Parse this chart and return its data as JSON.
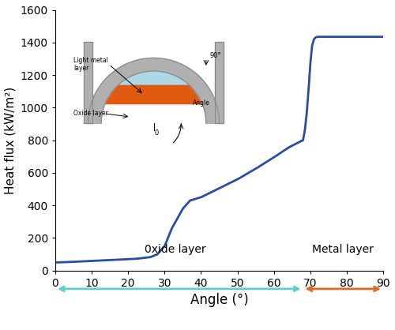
{
  "title": "",
  "xlabel": "Angle (°)",
  "ylabel": "Heat flux (kW/m²)",
  "xlim": [
    0,
    90
  ],
  "ylim": [
    0,
    1600
  ],
  "xticks": [
    0,
    10,
    20,
    30,
    40,
    50,
    60,
    70,
    80,
    90
  ],
  "yticks": [
    0,
    200,
    400,
    600,
    800,
    1000,
    1200,
    1400,
    1600
  ],
  "line_color": "#2b4ca0",
  "line_width": 2.0,
  "oxide_label": "0xide layer",
  "metal_label": "Metal layer",
  "oxide_arrow_color": "#5ecfcf",
  "metal_arrow_color": "#e06820",
  "oxide_boundary": 68,
  "key_angles": [
    0,
    3,
    8,
    15,
    22,
    26,
    28,
    30,
    32,
    35,
    37,
    40,
    45,
    50,
    55,
    60,
    64,
    67,
    68,
    68.5,
    69,
    69.5,
    70,
    70.5,
    71,
    71.5,
    72,
    75,
    90
  ],
  "key_fluxes": [
    50,
    52,
    57,
    65,
    72,
    82,
    100,
    150,
    260,
    380,
    430,
    450,
    505,
    560,
    625,
    695,
    755,
    790,
    800,
    860,
    960,
    1100,
    1270,
    1380,
    1420,
    1432,
    1435,
    1435,
    1435
  ]
}
